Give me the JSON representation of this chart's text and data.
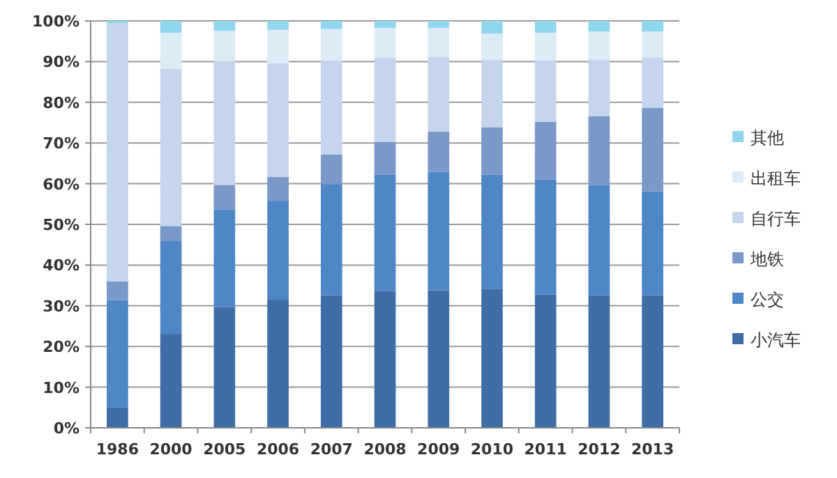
{
  "chart_data": {
    "type": "bar",
    "stacked": true,
    "categories": [
      "1986",
      "2000",
      "2005",
      "2006",
      "2007",
      "2008",
      "2009",
      "2010",
      "2011",
      "2012",
      "2013"
    ],
    "series": [
      {
        "name": "小汽车",
        "color": "#3f6ea6",
        "values": [
          5,
          23.1,
          29.7,
          31.5,
          32.6,
          33.6,
          33.8,
          34.1,
          32.8,
          32.6,
          32.6
        ]
      },
      {
        "name": "公交",
        "color": "#4f86c6",
        "values": [
          26.4,
          22.8,
          24,
          24.3,
          27.3,
          28.6,
          29.1,
          28.1,
          28.2,
          27.1,
          25.5
        ]
      },
      {
        "name": "地铁",
        "color": "#7a98c8",
        "values": [
          4.6,
          3.7,
          6,
          5.9,
          7.3,
          8.1,
          9.9,
          11.7,
          14.2,
          16.9,
          20.5
        ]
      },
      {
        "name": "自行车",
        "color": "#c5d5ee",
        "values": [
          63.4,
          38.6,
          30.3,
          27.9,
          23.1,
          20.6,
          18.4,
          16.6,
          15.1,
          13.9,
          12.4
        ]
      },
      {
        "name": "出租车",
        "color": "#dcecf6",
        "values": [
          null,
          8.9,
          7.6,
          8.2,
          7.7,
          7.4,
          7.1,
          6.4,
          6.8,
          6.9,
          6.4
        ]
      },
      {
        "name": "其他",
        "color": "#8fd6ee",
        "values": [
          0.6,
          2.9,
          2.4,
          2.2,
          2,
          1.7,
          1.7,
          3.1,
          2.9,
          2.6,
          2.6
        ]
      }
    ],
    "ylim": [
      0,
      100
    ],
    "yticks": [
      {
        "value": 0,
        "label": "0%"
      },
      {
        "value": 10,
        "label": "10%"
      },
      {
        "value": 20,
        "label": "20%"
      },
      {
        "value": 30,
        "label": "30%"
      },
      {
        "value": 40,
        "label": "40%"
      },
      {
        "value": 50,
        "label": "50%"
      },
      {
        "value": 60,
        "label": "60%"
      },
      {
        "value": 70,
        "label": "70%"
      },
      {
        "value": 80,
        "label": "80%"
      },
      {
        "value": 90,
        "label": "90%"
      },
      {
        "value": 100,
        "label": "100%"
      }
    ],
    "grid": "y",
    "legend": "right"
  }
}
